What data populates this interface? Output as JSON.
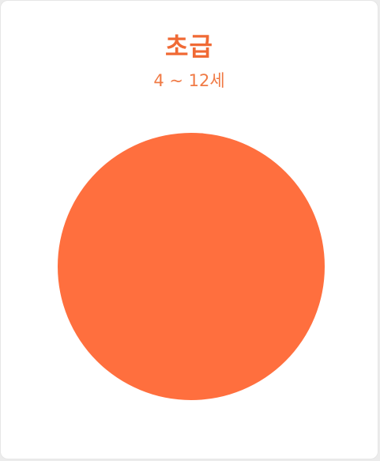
{
  "card": {
    "title": "초급",
    "subtitle": "4 ~ 12세"
  },
  "colors": {
    "accent": "#ff6f3e",
    "title": "#f06a35",
    "subtitle": "#f07a45",
    "background": "#ffffff"
  }
}
